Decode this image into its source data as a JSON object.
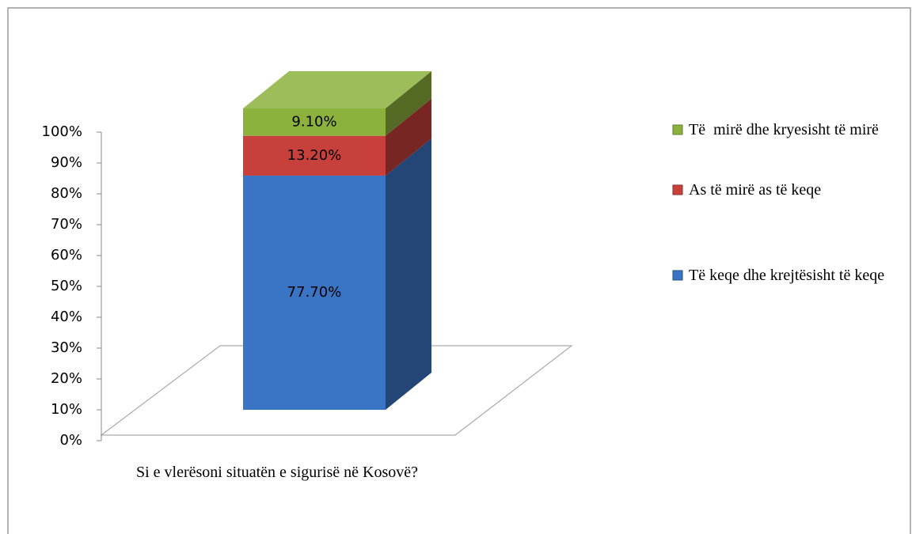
{
  "chart_data": {
    "type": "bar3d_stacked",
    "categories": [
      "Si e vlerësoni situatën e sigurisë në Kosovë?"
    ],
    "series": [
      {
        "name": "Të keqe dhe krejtësisht të keqe",
        "color": "#3a74c4",
        "values": [
          77.7
        ],
        "value_labels": [
          "77.70%"
        ]
      },
      {
        "name": "As të mirë as të keqe",
        "color": "#c8403b",
        "values": [
          13.2
        ],
        "value_labels": [
          "13.20%"
        ]
      },
      {
        "name": "Të  mirë dhe kryesisht të mirë",
        "color": "#8cb13d",
        "values": [
          9.1
        ],
        "value_labels": [
          "9.10%"
        ]
      }
    ],
    "ylim": [
      0,
      100
    ],
    "yticks": [
      {
        "value": 0,
        "label": "0%"
      },
      {
        "value": 10,
        "label": "10%"
      },
      {
        "value": 20,
        "label": "20%"
      },
      {
        "value": 30,
        "label": "30%"
      },
      {
        "value": 40,
        "label": "40%"
      },
      {
        "value": 50,
        "label": "50%"
      },
      {
        "value": 60,
        "label": "60%"
      },
      {
        "value": 70,
        "label": "70%"
      },
      {
        "value": 80,
        "label": "80%"
      },
      {
        "value": 90,
        "label": "90%"
      },
      {
        "value": 100,
        "label": "100%"
      }
    ],
    "legend": "right"
  }
}
